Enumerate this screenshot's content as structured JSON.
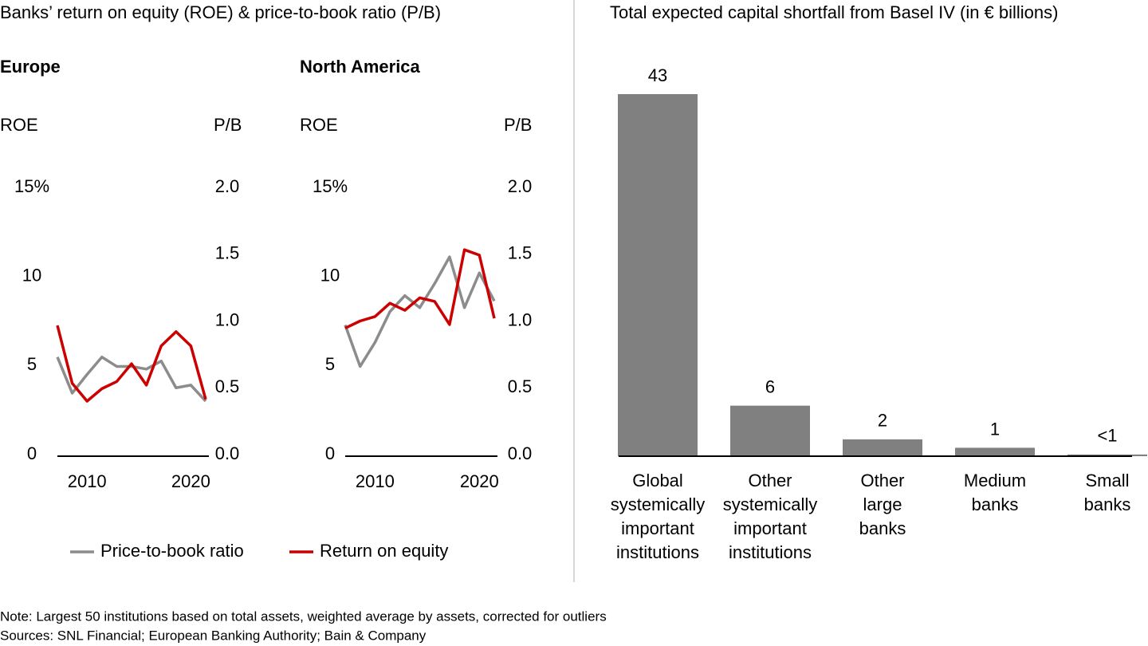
{
  "title": "Banks’ return on equity (ROE) & price-to-book ratio (P/B)",
  "note": "Note: Largest 50 institutions based on total assets, weighted average by assets, corrected for outliers",
  "sources": "Sources: SNL Financial; European Banking Authority; Bain & Company",
  "chart_data": [
    {
      "type": "line",
      "title": "Europe",
      "ylabel": "ROE",
      "y2label": "P/B",
      "categories": [
        null,
        null,
        "2010",
        null,
        null,
        null,
        null,
        null,
        null,
        "2020",
        null
      ],
      "ylim": [
        0,
        15
      ],
      "yticks": [
        0,
        5,
        10,
        {
          "value": 15,
          "label": "15%"
        }
      ],
      "y2lim": [
        0,
        2
      ],
      "y2ticks": [
        {
          "value": 0,
          "label": "0.0"
        },
        0.5,
        {
          "value": 1,
          "label": "1.0"
        },
        1.5,
        {
          "value": 2,
          "label": "2.0"
        }
      ],
      "series": [
        {
          "name": "Price-to-book ratio",
          "color": "#8c8c8c",
          "axis": "y2",
          "values": [
            0.73,
            0.46,
            0.6,
            0.73,
            0.66,
            0.66,
            0.64,
            0.7,
            0.5,
            0.52,
            0.4
          ]
        },
        {
          "name": "Return on equity",
          "color": "#cc0000",
          "axis": "y",
          "values": [
            7.25,
            4.0,
            3.0,
            3.7,
            4.1,
            5.1,
            3.9,
            6.1,
            6.9,
            6.1,
            3.1
          ]
        }
      ]
    },
    {
      "type": "line",
      "title": "North America",
      "ylabel": "ROE",
      "y2label": "P/B",
      "categories": [
        null,
        null,
        "2010",
        null,
        null,
        null,
        null,
        null,
        null,
        "2020",
        null
      ],
      "ylim": [
        0,
        15
      ],
      "yticks": [
        0,
        5,
        10,
        {
          "value": 15,
          "label": "15%"
        }
      ],
      "y2lim": [
        0,
        2
      ],
      "y2ticks": [
        {
          "value": 0,
          "label": "0.0"
        },
        0.5,
        {
          "value": 1,
          "label": "1.0"
        },
        1.5,
        {
          "value": 2,
          "label": "2.0"
        }
      ],
      "series": [
        {
          "name": "Price-to-book ratio",
          "color": "#8c8c8c",
          "axis": "y2",
          "values": [
            0.97,
            0.66,
            0.84,
            1.07,
            1.19,
            1.1,
            1.28,
            1.48,
            1.1,
            1.36,
            1.15
          ]
        },
        {
          "name": "Return on equity",
          "color": "#cc0000",
          "axis": "y",
          "values": [
            7.1,
            7.5,
            7.75,
            8.5,
            8.1,
            8.8,
            8.6,
            7.3,
            11.5,
            11.2,
            7.65
          ]
        }
      ]
    },
    {
      "type": "bar",
      "title": "Total expected capital shortfall from Basel IV (in € billions)",
      "categories": [
        [
          "Global",
          "systemically",
          "important",
          "institutions"
        ],
        [
          "Other",
          "systemically",
          "important",
          "institutions"
        ],
        [
          "Other",
          "large",
          "banks"
        ],
        [
          "Medium",
          "banks"
        ],
        [
          "Small",
          "banks"
        ]
      ],
      "values": [
        43,
        6,
        2,
        1,
        0.2
      ],
      "value_labels": [
        "43",
        "6",
        "2",
        "1",
        "<1"
      ],
      "color": "#808080"
    }
  ]
}
